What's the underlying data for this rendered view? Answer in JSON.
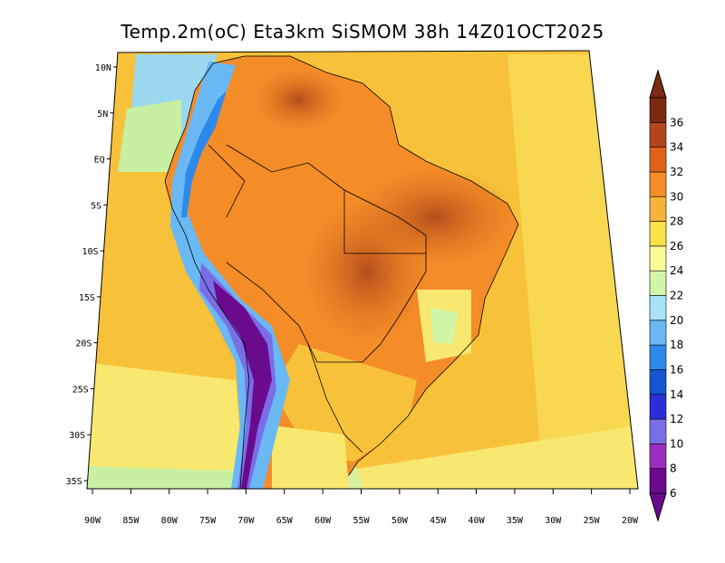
{
  "title": "Temp.2m(oC) Eta3km SiSMOM 38h 14Z01OCT2025",
  "lat_ticks": [
    {
      "label": "10N",
      "value": 10
    },
    {
      "label": "5N",
      "value": 5
    },
    {
      "label": "EQ",
      "value": 0
    },
    {
      "label": "5S",
      "value": -5
    },
    {
      "label": "10S",
      "value": -10
    },
    {
      "label": "15S",
      "value": -15
    },
    {
      "label": "20S",
      "value": -20
    },
    {
      "label": "25S",
      "value": -25
    },
    {
      "label": "30S",
      "value": -30
    },
    {
      "label": "35S",
      "value": -35
    }
  ],
  "lon_ticks": [
    {
      "label": "90W",
      "value": -90
    },
    {
      "label": "85W",
      "value": -85
    },
    {
      "label": "80W",
      "value": -80
    },
    {
      "label": "75W",
      "value": -75
    },
    {
      "label": "70W",
      "value": -70
    },
    {
      "label": "65W",
      "value": -65
    },
    {
      "label": "60W",
      "value": -60
    },
    {
      "label": "55W",
      "value": -55
    },
    {
      "label": "50W",
      "value": -50
    },
    {
      "label": "45W",
      "value": -45
    },
    {
      "label": "40W",
      "value": -40
    },
    {
      "label": "35W",
      "value": -35
    },
    {
      "label": "30W",
      "value": -30
    },
    {
      "label": "25W",
      "value": -25
    },
    {
      "label": "20W",
      "value": -20
    }
  ],
  "colorbar": {
    "labels": [
      "6",
      "8",
      "10",
      "12",
      "14",
      "16",
      "18",
      "20",
      "22",
      "24",
      "26",
      "28",
      "30",
      "32",
      "34",
      "36"
    ],
    "colors": [
      "#6a0a8c",
      "#9a2ec0",
      "#7a6ee8",
      "#2a30d8",
      "#1456d2",
      "#2e8aea",
      "#6ab8f4",
      "#a8e4f6",
      "#d2f6a8",
      "#fafa96",
      "#f7e24a",
      "#f6b43c",
      "#f48c28",
      "#e2621a",
      "#b2461e",
      "#7a2a12"
    ]
  },
  "legend_colors": {
    "ocean_tropical": "#f7c23a",
    "ocean_south": "#f7e35a",
    "ocean_cold": "#c8f0a0",
    "land_warm": "#f48c28",
    "land_hot": "#c85a1e",
    "andes": "#2e8aea",
    "andes_cold": "#6a0a8c"
  }
}
